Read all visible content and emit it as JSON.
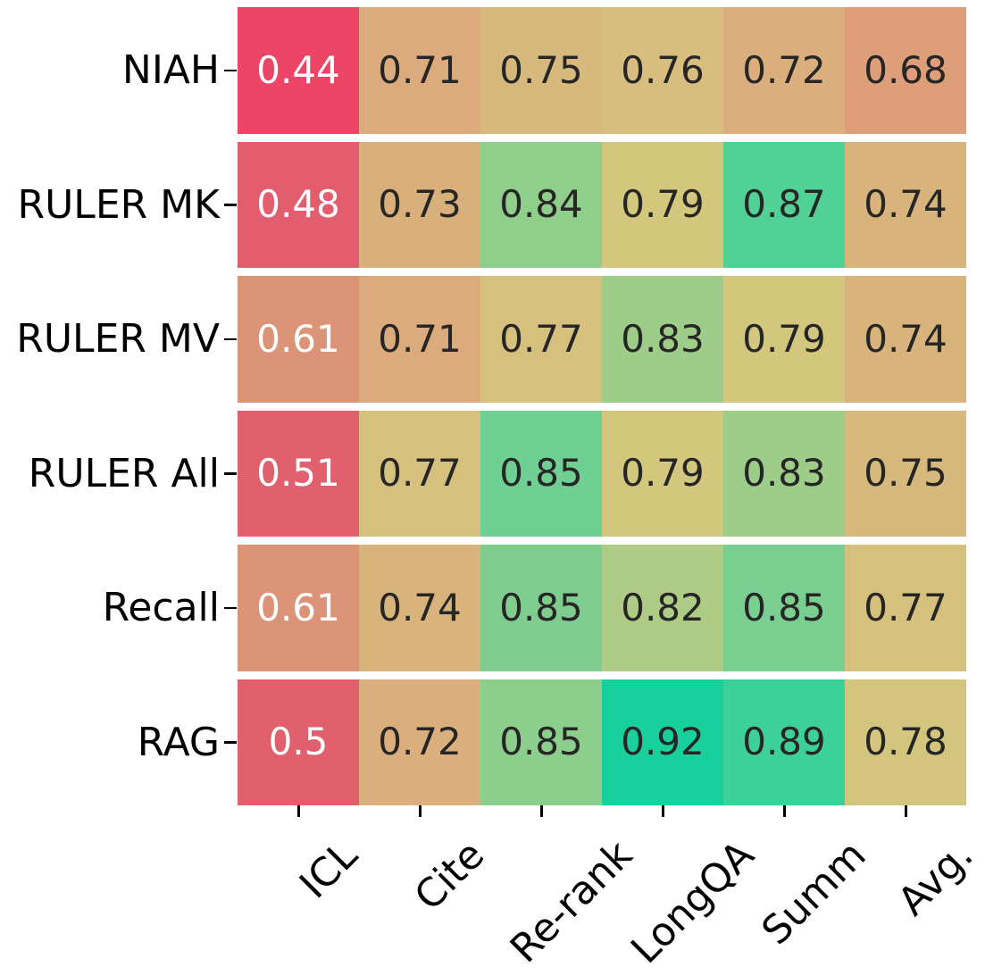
{
  "figure": {
    "background": "#ffffff",
    "axis_tick_color": "#000000",
    "axis_label_color": "#000000",
    "annot_dark_color": "#262626",
    "annot_light_color": "#ffffff",
    "white_text_value_threshold": 0.65
  },
  "chart_data": {
    "type": "heatmap",
    "title": "",
    "xlabel": "",
    "ylabel": "",
    "rows": [
      "NIAH",
      "RULER MK",
      "RULER MV",
      "RULER All",
      "Recall",
      "RAG"
    ],
    "columns": [
      "ICL",
      "Cite",
      "Re-rank",
      "LongQA",
      "Summ",
      "Avg."
    ],
    "values": [
      [
        0.44,
        0.71,
        0.75,
        0.76,
        0.72,
        0.68
      ],
      [
        0.48,
        0.73,
        0.84,
        0.79,
        0.87,
        0.74
      ],
      [
        0.61,
        0.71,
        0.77,
        0.83,
        0.79,
        0.74
      ],
      [
        0.51,
        0.77,
        0.85,
        0.79,
        0.83,
        0.75
      ],
      [
        0.61,
        0.74,
        0.85,
        0.82,
        0.85,
        0.77
      ],
      [
        0.5,
        0.72,
        0.85,
        0.92,
        0.89,
        0.78
      ]
    ],
    "cell_colors": [
      [
        "#ec4568",
        "#dcab7d",
        "#d8b97d",
        "#d7bd7e",
        "#daae7d",
        "#de9e7a"
      ],
      [
        "#e25d6e",
        "#d9b07c",
        "#90ce8b",
        "#d3c77e",
        "#52d196",
        "#d8b37c"
      ],
      [
        "#dc9478",
        "#dcab7d",
        "#d5c07d",
        "#9dcd88",
        "#d3c77e",
        "#d8b37c"
      ],
      [
        "#e0606e",
        "#d5c07d",
        "#70cf92",
        "#d3c77e",
        "#9dcd88",
        "#d8b97d"
      ],
      [
        "#dc9478",
        "#d8b37c",
        "#7fcd8e",
        "#afcc86",
        "#7ace90",
        "#d5c07d"
      ],
      [
        "#e1606d",
        "#daae7d",
        "#8cce8c",
        "#17d09b",
        "#3dd199",
        "#d4c57e"
      ]
    ],
    "colormap": "red-tan-green diverging",
    "grid": false,
    "legend": "none",
    "x_tick_rotation_deg": 45,
    "annotations_shown": true
  }
}
